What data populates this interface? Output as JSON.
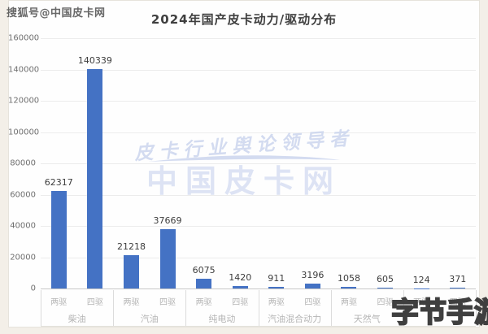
{
  "page": {
    "sohu_watermark": "搜狐号@中国皮卡网",
    "bytes_watermark": "字节手游网"
  },
  "watermark": {
    "slogan": "皮卡行业舆论领导者",
    "brand": "中国皮卡网",
    "color": "#dde3f4"
  },
  "chart_data": {
    "type": "bar",
    "title": "2024年国产皮卡动力/驱动分布",
    "bar_color": "#4472c4",
    "grid": true,
    "legend": "none",
    "ylim": [
      0,
      160000
    ],
    "y_axis": {
      "min": 0,
      "max": 160000,
      "step": 20000,
      "ticks": [
        "0",
        "20000",
        "40000",
        "60000",
        "80000",
        "100000",
        "120000",
        "140000",
        "160000"
      ]
    },
    "groups": [
      {
        "label": "柴油",
        "bars": [
          {
            "sub": "两驱",
            "value": 62317
          },
          {
            "sub": "四驱",
            "value": 140339
          }
        ]
      },
      {
        "label": "汽油",
        "bars": [
          {
            "sub": "两驱",
            "value": 21218
          },
          {
            "sub": "四驱",
            "value": 37669
          }
        ]
      },
      {
        "label": "纯电动",
        "bars": [
          {
            "sub": "两驱",
            "value": 6075
          },
          {
            "sub": "四驱",
            "value": 1420
          }
        ]
      },
      {
        "label": "汽油混合动力",
        "bars": [
          {
            "sub": "两驱",
            "value": 911
          },
          {
            "sub": "四驱",
            "value": 3196
          }
        ]
      },
      {
        "label": "天然气",
        "bars": [
          {
            "sub": "两驱",
            "value": 1058
          },
          {
            "sub": "四驱",
            "value": 605
          }
        ]
      },
      {
        "label": "",
        "bars": [
          {
            "sub": "两驱",
            "value": 124
          },
          {
            "sub": "四驱",
            "value": 371
          }
        ]
      }
    ]
  }
}
